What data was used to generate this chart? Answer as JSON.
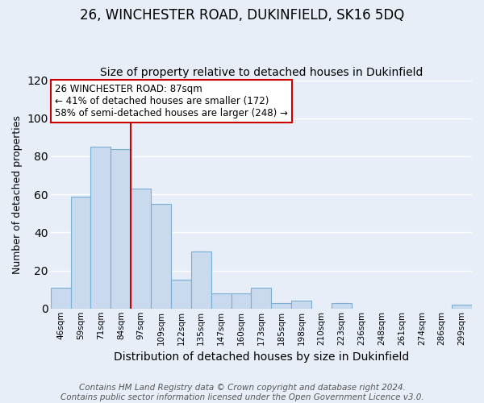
{
  "title": "26, WINCHESTER ROAD, DUKINFIELD, SK16 5DQ",
  "subtitle": "Size of property relative to detached houses in Dukinfield",
  "xlabel": "Distribution of detached houses by size in Dukinfield",
  "ylabel": "Number of detached properties",
  "bar_labels": [
    "46sqm",
    "59sqm",
    "71sqm",
    "84sqm",
    "97sqm",
    "109sqm",
    "122sqm",
    "135sqm",
    "147sqm",
    "160sqm",
    "173sqm",
    "185sqm",
    "198sqm",
    "210sqm",
    "223sqm",
    "236sqm",
    "248sqm",
    "261sqm",
    "274sqm",
    "286sqm",
    "299sqm"
  ],
  "bar_values": [
    11,
    59,
    85,
    84,
    63,
    55,
    15,
    30,
    8,
    8,
    11,
    3,
    4,
    0,
    3,
    0,
    0,
    0,
    0,
    0,
    2
  ],
  "bar_color": "#c9d9ee",
  "bar_edge_color": "#7aafd4",
  "ylim": [
    0,
    120
  ],
  "yticks": [
    0,
    20,
    40,
    60,
    80,
    100,
    120
  ],
  "vline_x": 3.5,
  "vline_color": "#cc0000",
  "annotation_title": "26 WINCHESTER ROAD: 87sqm",
  "annotation_line1": "← 41% of detached houses are smaller (172)",
  "annotation_line2": "58% of semi-detached houses are larger (248) →",
  "footer_line1": "Contains HM Land Registry data © Crown copyright and database right 2024.",
  "footer_line2": "Contains public sector information licensed under the Open Government Licence v3.0.",
  "plot_bg_color": "#e8eef8",
  "fig_bg_color": "#e8eef8",
  "grid_color": "#ffffff",
  "title_fontsize": 12,
  "subtitle_fontsize": 10,
  "xlabel_fontsize": 10,
  "ylabel_fontsize": 9,
  "tick_fontsize": 7.5,
  "footer_fontsize": 7.5,
  "annot_fontsize": 8.5
}
